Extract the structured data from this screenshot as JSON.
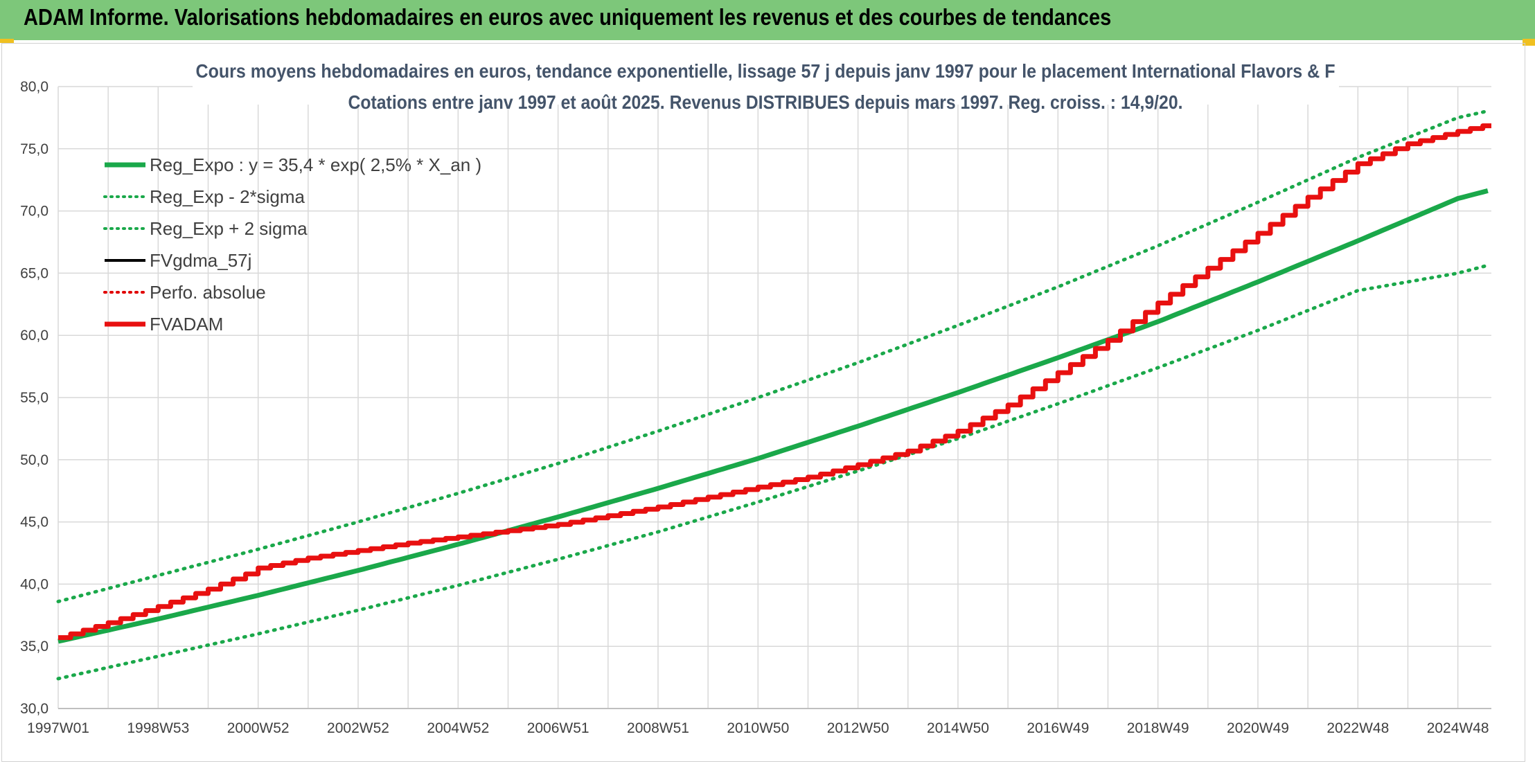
{
  "header": {
    "title": "ADAM Informe. Valorisations hebdomadaires en euros avec uniquement les revenus et des courbes de tendances"
  },
  "chart_data": {
    "type": "line",
    "title": "Cours moyens hebdomadaires en euros, tendance exponentielle, lissage 57 j depuis janv 1997 pour le placement International Flavors & F",
    "subtitle": "Cotations entre janv 1997 et août 2025. Revenus DISTRIBUES depuis mars 1997. Reg. croiss. : 14,9/20.",
    "x_range_years": [
      1997.0,
      2025.67
    ],
    "x_tick_labels": [
      "1997W01",
      "1998W53",
      "2000W52",
      "2002W52",
      "2004W52",
      "2006W51",
      "2008W51",
      "2010W50",
      "2012W50",
      "2014W50",
      "2016W49",
      "2018W49",
      "2020W49",
      "2022W48",
      "2024W48"
    ],
    "x_tick_years": [
      1997.0,
      1999.0,
      2001.0,
      2003.0,
      2005.0,
      2007.0,
      2009.0,
      2011.0,
      2013.0,
      2015.0,
      2017.0,
      2019.0,
      2021.0,
      2023.0,
      2025.0
    ],
    "ylim": [
      30,
      80
    ],
    "y_ticks": [
      "30,0",
      "35,0",
      "40,0",
      "45,0",
      "50,0",
      "55,0",
      "60,0",
      "65,0",
      "70,0",
      "75,0",
      "80,0"
    ],
    "y_tick_values": [
      30,
      35,
      40,
      45,
      50,
      55,
      60,
      65,
      70,
      75,
      80
    ],
    "grid": true,
    "legend_position": "top-left",
    "legend": [
      {
        "label": "Reg_Expo : y = 35,4 * exp( 2,5% *  X_an )",
        "color": "#1aa84a",
        "style": "solid-thick"
      },
      {
        "label": "Reg_Exp - 2*sigma",
        "color": "#1aa84a",
        "style": "dotted"
      },
      {
        "label": "Reg_Exp + 2 sigma",
        "color": "#1aa84a",
        "style": "dotted"
      },
      {
        "label": "FVgdma_57j",
        "color": "#000000",
        "style": "solid"
      },
      {
        "label": "Perfo. absolue",
        "color": "#e00000",
        "style": "dotted"
      },
      {
        "label": "FVADAM",
        "color": "#e81010",
        "style": "solid-thick"
      }
    ],
    "series": [
      {
        "name": "Reg_Expo : y = 35,4 * exp( 2,5% *  X_an )",
        "color": "#1aa84a",
        "x": [
          1997,
          1999,
          2001,
          2003,
          2005,
          2007,
          2009,
          2011,
          2013,
          2015,
          2017,
          2019,
          2021,
          2023,
          2025,
          2025.67
        ],
        "y": [
          35.4,
          37.2,
          39.1,
          41.1,
          43.2,
          45.4,
          47.7,
          50.1,
          52.7,
          55.4,
          58.2,
          61.1,
          64.3,
          67.6,
          71.0,
          71.7
        ]
      },
      {
        "name": "Reg_Exp - 2*sigma",
        "color": "#1aa84a",
        "x": [
          1997,
          1999,
          2001,
          2003,
          2005,
          2007,
          2009,
          2011,
          2013,
          2015,
          2017,
          2019,
          2021,
          2023,
          2025,
          2025.67
        ],
        "y": [
          32.4,
          34.2,
          36.0,
          37.9,
          39.9,
          42.0,
          44.2,
          46.6,
          49.1,
          51.7,
          54.5,
          57.4,
          60.4,
          63.6,
          65.0,
          65.7
        ]
      },
      {
        "name": "Reg_Exp + 2 sigma",
        "color": "#1aa84a",
        "x": [
          1997,
          1999,
          2001,
          2003,
          2005,
          2007,
          2009,
          2011,
          2013,
          2015,
          2017,
          2019,
          2021,
          2023,
          2025,
          2025.67
        ],
        "y": [
          38.6,
          40.7,
          42.8,
          45.0,
          47.3,
          49.7,
          52.3,
          55.0,
          57.8,
          60.8,
          63.9,
          67.2,
          70.7,
          74.3,
          77.5,
          78.1
        ]
      },
      {
        "name": "FVADAM",
        "color": "#e81010",
        "x": [
          1997,
          1998,
          1999,
          2000,
          2000.8,
          2001,
          2002,
          2003,
          2004,
          2005,
          2006,
          2007,
          2008,
          2009,
          2010,
          2011,
          2012,
          2013,
          2014,
          2015,
          2016,
          2017,
          2018,
          2019,
          2020,
          2021,
          2022,
          2023,
          2024,
          2025,
          2025.67
        ],
        "y": [
          35.7,
          36.9,
          38.2,
          39.6,
          40.9,
          41.3,
          42.1,
          42.7,
          43.3,
          43.8,
          44.3,
          44.8,
          45.5,
          46.2,
          47.0,
          47.8,
          48.6,
          49.6,
          50.7,
          52.3,
          54.4,
          57.0,
          59.6,
          62.6,
          65.4,
          68.2,
          71.1,
          73.8,
          75.4,
          76.4,
          77.0
        ]
      }
    ]
  }
}
